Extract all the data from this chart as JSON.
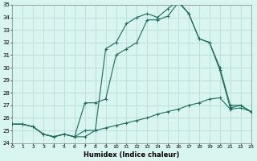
{
  "xlabel": "Humidex (Indice chaleur)",
  "bg_color": "#d8f5f0",
  "grid_color": "#b8ddd8",
  "line_color": "#1a6b5a",
  "x_min": 0,
  "x_max": 23,
  "y_min": 24,
  "y_max": 35,
  "x_ticks": [
    0,
    1,
    2,
    3,
    4,
    5,
    6,
    7,
    8,
    9,
    10,
    11,
    12,
    13,
    14,
    15,
    16,
    17,
    18,
    19,
    20,
    21,
    22,
    23
  ],
  "y_ticks": [
    24,
    25,
    26,
    27,
    28,
    29,
    30,
    31,
    32,
    33,
    34,
    35
  ],
  "line1_x": [
    0,
    1,
    2,
    3,
    4,
    5,
    6,
    7,
    8,
    9,
    10,
    11,
    12,
    13,
    14,
    15,
    16,
    17,
    18,
    19,
    20,
    21,
    22,
    23
  ],
  "line1_y": [
    25.5,
    25.5,
    25.3,
    24.7,
    24.5,
    24.7,
    24.5,
    24.5,
    25.0,
    25.2,
    25.4,
    25.6,
    25.8,
    26.0,
    26.3,
    26.5,
    26.7,
    27.0,
    27.2,
    27.5,
    27.6,
    26.7,
    26.8,
    26.5
  ],
  "line2_x": [
    0,
    1,
    2,
    3,
    4,
    5,
    6,
    7,
    8,
    9,
    10,
    11,
    12,
    13,
    14,
    15,
    16,
    17,
    18,
    19,
    20,
    21,
    22,
    23
  ],
  "line2_y": [
    25.5,
    25.5,
    25.3,
    24.7,
    24.5,
    24.7,
    24.5,
    27.2,
    27.2,
    27.5,
    31.0,
    31.5,
    32.0,
    33.8,
    33.8,
    34.1,
    35.2,
    34.3,
    32.3,
    32.0,
    29.8,
    26.8,
    27.0,
    26.5
  ],
  "line3_x": [
    0,
    1,
    2,
    3,
    4,
    5,
    6,
    7,
    8,
    9,
    10,
    11,
    12,
    13,
    14,
    15,
    16,
    17,
    18,
    19,
    20,
    21,
    22,
    23
  ],
  "line3_y": [
    25.5,
    25.5,
    25.3,
    24.7,
    24.5,
    24.7,
    24.5,
    25.0,
    25.0,
    31.5,
    32.0,
    33.5,
    34.0,
    34.3,
    34.0,
    34.7,
    35.3,
    34.3,
    32.3,
    32.0,
    30.0,
    27.0,
    27.0,
    26.5
  ]
}
